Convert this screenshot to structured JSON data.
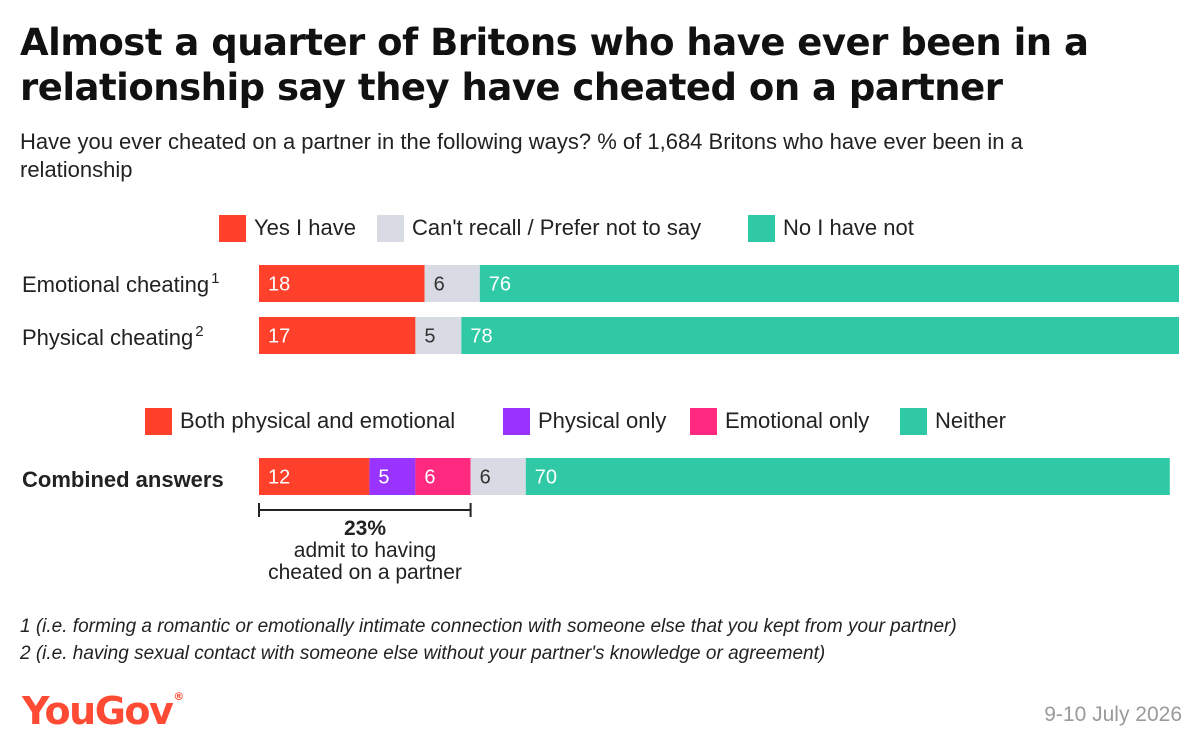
{
  "title": "Almost a quarter of Britons who have ever been in a relationship say they have cheated on a partner",
  "subtitle": "Have you ever cheated on a partner in the following ways? % of 1,684 Britons who have ever been in a relationship",
  "legend_top": [
    {
      "label": "Yes I have",
      "color": "#ff412c"
    },
    {
      "label": "Can't recall / Prefer not to say",
      "color": "#d8dbe3"
    },
    {
      "label": "No I have not",
      "color": "#2fcaa5"
    }
  ],
  "legend_bottom": [
    {
      "label": "Both physical and emotional",
      "color": "#ff412c"
    },
    {
      "label": "Physical only",
      "color": "#9933ff"
    },
    {
      "label": "Emotional only",
      "color": "#ff2980"
    },
    {
      "label": "Neither",
      "color": "#2fcaa5"
    }
  ],
  "rows": [
    {
      "label": "Emotional cheating",
      "sup": "1"
    },
    {
      "label": "Physical cheating",
      "sup": "2"
    },
    {
      "label": "Combined answers",
      "sup": ""
    }
  ],
  "chart_data": {
    "type": "bar",
    "orientation": "horizontal",
    "stacked": true,
    "unit": "%",
    "xlim": [
      0,
      100
    ],
    "bars": [
      {
        "category": "Emotional cheating",
        "segments": [
          {
            "series": "Yes I have",
            "value": 18,
            "color": "#ff412c",
            "label_color": "#ffffff"
          },
          {
            "series": "Can't recall / Prefer not to say",
            "value": 6,
            "color": "#d8dbe3",
            "label_color": "#333333"
          },
          {
            "series": "No I have not",
            "value": 76,
            "color": "#2fcaa5",
            "label_color": "#ffffff"
          }
        ]
      },
      {
        "category": "Physical cheating",
        "segments": [
          {
            "series": "Yes I have",
            "value": 17,
            "color": "#ff412c",
            "label_color": "#ffffff"
          },
          {
            "series": "Can't recall / Prefer not to say",
            "value": 5,
            "color": "#d8dbe3",
            "label_color": "#333333"
          },
          {
            "series": "No I have not",
            "value": 78,
            "color": "#2fcaa5",
            "label_color": "#ffffff"
          }
        ]
      },
      {
        "category": "Combined answers",
        "segments": [
          {
            "series": "Both physical and emotional",
            "value": 12,
            "color": "#ff412c",
            "label_color": "#ffffff"
          },
          {
            "series": "Physical only",
            "value": 5,
            "color": "#9933ff",
            "label_color": "#ffffff"
          },
          {
            "series": "Emotional only",
            "value": 6,
            "color": "#ff2980",
            "label_color": "#ffffff"
          },
          {
            "series": "Can't recall / Prefer not to say",
            "value": 6,
            "color": "#d8dbe3",
            "label_color": "#333333"
          },
          {
            "series": "Neither",
            "value": 70,
            "color": "#2fcaa5",
            "label_color": "#ffffff"
          }
        ]
      }
    ],
    "annotation": {
      "value": "23%",
      "text_line1": "admit to having",
      "text_line2": "cheated on a partner"
    }
  },
  "footnotes": [
    "1 (i.e. forming a romantic or emotionally intimate connection with someone else that you kept from your partner)",
    "2 (i.e. having sexual contact with someone else without your partner's knowledge or agreement)"
  ],
  "logo": {
    "text": "YouGov",
    "mark": "®"
  },
  "date": "9-10 July 2026"
}
